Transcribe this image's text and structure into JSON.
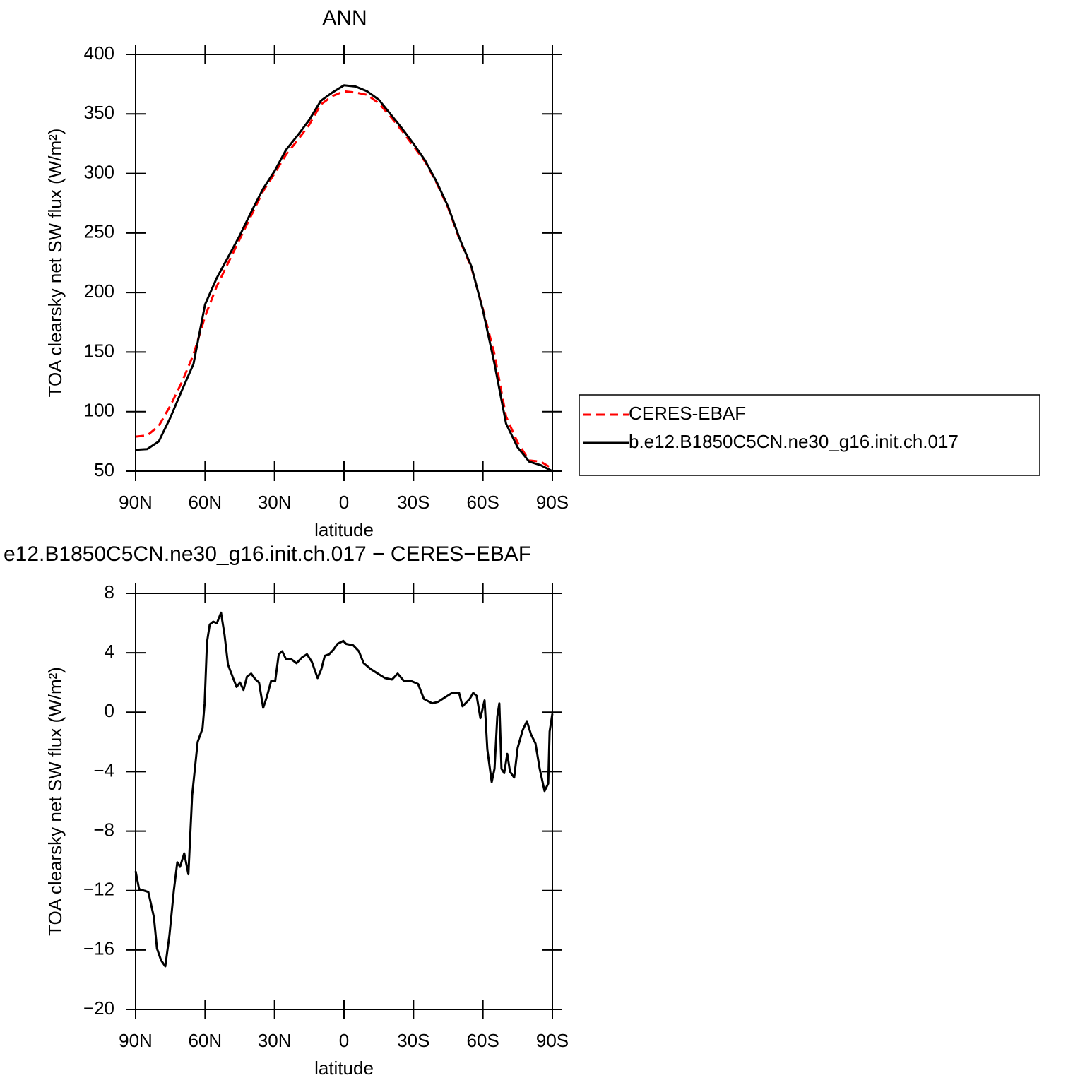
{
  "chart_data": [
    {
      "type": "line",
      "title": "ANN",
      "x_label": "latitude",
      "y_label": "TOA clearsky net SW flux (W/m²)",
      "x": [
        90,
        85,
        80,
        75,
        70,
        65,
        60,
        55,
        50,
        45,
        40,
        35,
        30,
        25,
        20,
        15,
        10,
        5,
        0,
        -5,
        -10,
        -15,
        -20,
        -25,
        -30,
        -35,
        -40,
        -45,
        -50,
        -55,
        -60,
        -65,
        -70,
        -75,
        -80,
        -85,
        -90
      ],
      "series": [
        {
          "name": "CERES-EBAF",
          "color": "#ff0000",
          "dashed": true,
          "values": [
            79,
            80,
            88,
            105,
            125,
            148,
            180,
            205,
            225,
            245,
            265,
            285,
            300,
            316,
            328,
            341,
            358,
            365,
            369,
            368,
            366,
            359,
            348,
            336,
            323,
            310,
            292,
            271,
            244,
            221,
            186,
            148,
            96,
            74,
            59,
            58,
            52
          ]
        },
        {
          "name": "b.e12.B1850C5CN.ne30_g16.init.ch.017",
          "color": "#000000",
          "dashed": false,
          "values": [
            68,
            68.5,
            75,
            95,
            118,
            140,
            190,
            212,
            230,
            248,
            268,
            287,
            302,
            320,
            332,
            345,
            361,
            368,
            374,
            373,
            369,
            362,
            350,
            338,
            325,
            311,
            293,
            272,
            245,
            222,
            185,
            140,
            90,
            70,
            58,
            55,
            50
          ]
        }
      ],
      "xlim": [
        90,
        -90
      ],
      "xticks": [
        {
          "value": 90,
          "label": "90N"
        },
        {
          "value": 60,
          "label": "60N"
        },
        {
          "value": 30,
          "label": "30N"
        },
        0,
        {
          "value": -30,
          "label": "30S"
        },
        {
          "value": -60,
          "label": "60S"
        },
        {
          "value": -90,
          "label": "90S"
        }
      ],
      "ylim": [
        50,
        400
      ],
      "yticks": [
        50,
        100,
        150,
        200,
        250,
        300,
        350,
        400
      ],
      "legend": "right"
    },
    {
      "type": "line",
      "title": "e12.B1850C5CN.ne30_g16.init.ch.017 − CERES−EBAF",
      "x_label": "latitude",
      "y_label": "TOA clearsky net SW flux (W/m²)",
      "x": [
        90,
        88.5,
        84.5,
        82.1,
        80.8,
        79.0,
        77.2,
        75.4,
        73.5,
        72.0,
        70.8,
        69.0,
        67.2,
        65.6,
        63.2,
        61.1,
        60.2,
        59.2,
        58.0,
        56.5,
        54.9,
        53.1,
        51.6,
        50.1,
        47.9,
        46.4,
        44.9,
        43.4,
        41.9,
        40.1,
        38.2,
        36.7,
        34.9,
        33.4,
        31.5,
        29.7,
        28.2,
        26.7,
        25.1,
        23.0,
        20.5,
        18.1,
        16.0,
        13.9,
        11.4,
        9.8,
        8.3,
        6.4,
        4.6,
        2.8,
        0.3,
        -0.9,
        -4.0,
        -6.4,
        -8.5,
        -11.6,
        -14.6,
        -17.7,
        -20.7,
        -23.2,
        -25.9,
        -29.0,
        -32.0,
        -34.5,
        -38.1,
        -40.6,
        -43.6,
        -46.7,
        -49.7,
        -51.2,
        -54.3,
        -55.8,
        -57.3,
        -58.9,
        -60.7,
        -61.9,
        -63.8,
        -65.0,
        -66.2,
        -67.1,
        -68.0,
        -69.2,
        -70.5,
        -71.7,
        -73.5,
        -75.0,
        -77.2,
        -79.0,
        -80.8,
        -82.7,
        -84.5,
        -86.6,
        -88.2,
        -88.8,
        -90
      ],
      "values": [
        -10.7,
        -11.9,
        -12.1,
        -13.8,
        -15.9,
        -16.7,
        -17.1,
        -15.0,
        -12.0,
        -10.1,
        -10.4,
        -9.5,
        -10.9,
        -5.6,
        -2.0,
        -1.1,
        0.6,
        4.7,
        5.9,
        6.1,
        6.0,
        6.7,
        5.2,
        3.2,
        2.3,
        1.7,
        2.0,
        1.5,
        2.4,
        2.6,
        2.2,
        2.0,
        0.3,
        1.0,
        2.1,
        2.1,
        3.9,
        4.1,
        3.6,
        3.6,
        3.3,
        3.7,
        3.9,
        3.4,
        2.3,
        2.9,
        3.8,
        3.9,
        4.2,
        4.6,
        4.8,
        4.6,
        4.5,
        4.1,
        3.3,
        2.9,
        2.6,
        2.3,
        2.2,
        2.6,
        2.1,
        2.1,
        1.9,
        0.9,
        0.6,
        0.7,
        1.0,
        1.3,
        1.3,
        0.4,
        0.9,
        1.3,
        1.1,
        -0.4,
        0.8,
        -2.5,
        -4.7,
        -3.8,
        -0.3,
        0.6,
        -3.8,
        -4.1,
        -2.8,
        -4.0,
        -4.4,
        -2.4,
        -1.2,
        -0.6,
        -1.5,
        -2.1,
        -3.8,
        -5.3,
        -4.8,
        -1.3,
        -0.1
      ],
      "color": "#000000",
      "xlim": [
        90,
        -90
      ],
      "xticks": [
        {
          "value": 90,
          "label": "90N"
        },
        {
          "value": 60,
          "label": "60N"
        },
        {
          "value": 30,
          "label": "30N"
        },
        0,
        {
          "value": -30,
          "label": "30S"
        },
        {
          "value": -60,
          "label": "60S"
        },
        {
          "value": -90,
          "label": "90S"
        }
      ],
      "ylim": [
        -20,
        8
      ],
      "yticks": [
        {
          "value": -20,
          "label": "−20"
        },
        {
          "value": -16,
          "label": "−16"
        },
        {
          "value": -12,
          "label": "−12"
        },
        {
          "value": -8,
          "label": "−8"
        },
        {
          "value": -4,
          "label": "−4"
        },
        0,
        4,
        8
      ]
    }
  ]
}
